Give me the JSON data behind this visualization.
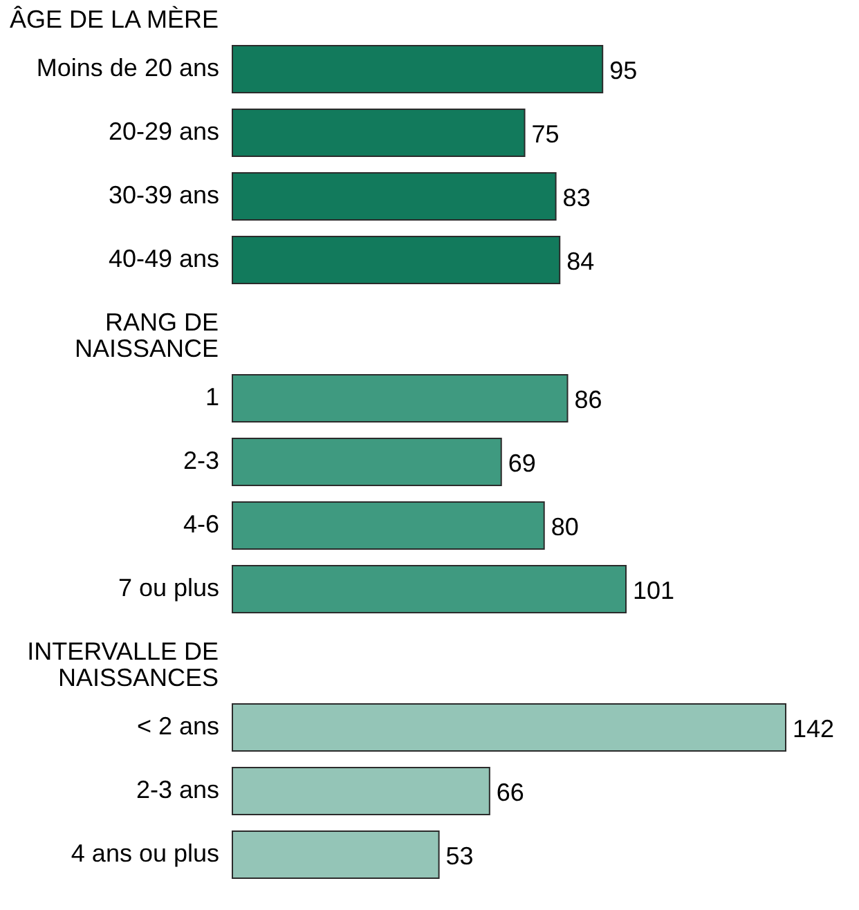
{
  "chart_data": [
    {
      "type": "bar",
      "orientation": "horizontal",
      "title": "ÂGE DE LA MÈRE",
      "categories": [
        "Moins de 20 ans",
        "20-29 ans",
        "30-39 ans",
        "40-49 ans"
      ],
      "values": [
        95,
        75,
        83,
        84
      ],
      "color": "#127a5c",
      "data_labels": true,
      "tick_labels": "y"
    },
    {
      "type": "bar",
      "orientation": "horizontal",
      "title": "RANG DE NAISSANCE",
      "categories": [
        "1",
        "2-3",
        "4-6",
        "7 ou plus"
      ],
      "values": [
        86,
        69,
        80,
        101
      ],
      "color": "#3f9a80",
      "data_labels": true,
      "tick_labels": "y"
    },
    {
      "type": "bar",
      "orientation": "horizontal",
      "title": "INTERVALLE DE NAISSANCES",
      "categories": [
        "< 2 ans",
        "2-3 ans",
        "4 ans ou plus"
      ],
      "values": [
        142,
        66,
        53
      ],
      "color": "#94c5b7",
      "data_labels": true,
      "tick_labels": "y"
    }
  ]
}
